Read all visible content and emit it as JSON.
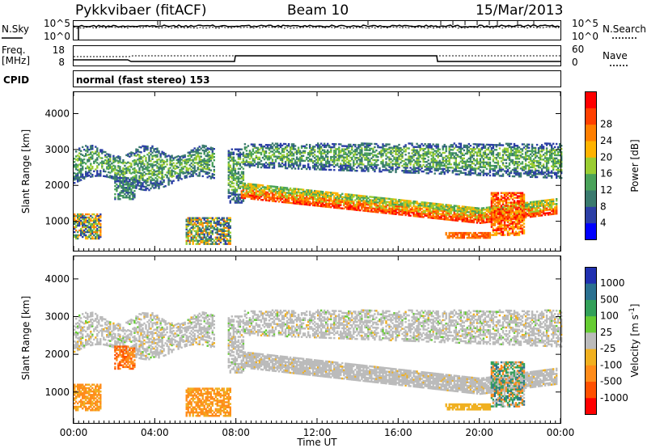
{
  "header": {
    "title": "Pykkvibaer (fitACF)",
    "beam": "Beam 10",
    "date": "15/Mar/2013"
  },
  "noise_panel": {
    "left_label": "N.Sky",
    "right_label": "N.Search",
    "left_ticks": [
      "10^5",
      "10^0"
    ],
    "right_ticks": [
      "10^5",
      "10^0"
    ]
  },
  "freq_panel": {
    "left_label_1": "Freq.",
    "left_label_2": "[MHz]",
    "right_label": "Nave",
    "left_ticks": [
      "18",
      "8"
    ],
    "right_ticks": [
      "60",
      "0"
    ]
  },
  "cpid": {
    "label": "CPID",
    "value": "normal (fast stereo) 153"
  },
  "colors": {
    "power": [
      "#0000ff",
      "#2c3fa6",
      "#3a7a6e",
      "#4aa25a",
      "#9acd32",
      "#ffb300",
      "#ff7f00",
      "#ff4000",
      "#ff0000"
    ],
    "velocity": [
      "#ff0000",
      "#ff5000",
      "#ff8c1a",
      "#f0b020",
      "#bbbbbb",
      "#66cc33",
      "#33a05a",
      "#2a7090",
      "#2030b0"
    ],
    "ground_scatter": "#bbbbbb"
  },
  "chart_data": [
    {
      "type": "heatmap",
      "title": "Power",
      "ylabel": "Slant Range [km]",
      "y_ticks": [
        "1000",
        "2000",
        "3000",
        "4000"
      ],
      "ylim": [
        180,
        4620
      ],
      "x_ticks": [
        "00:00",
        "04:00",
        "08:00",
        "12:00",
        "16:00",
        "20:00",
        "00:00"
      ],
      "xlim_hours": [
        0,
        24
      ],
      "colorbar_label": "Power [dB]",
      "colorbar_ticks": [
        "4",
        "8",
        "12",
        "16",
        "20",
        "24",
        "28"
      ],
      "colorbar_range": [
        0,
        30
      ]
    },
    {
      "type": "heatmap",
      "title": "Velocity",
      "ylabel": "Slant Range [km]",
      "y_ticks": [
        "1000",
        "2000",
        "3000",
        "4000"
      ],
      "ylim": [
        180,
        4620
      ],
      "x_ticks": [
        "00:00",
        "04:00",
        "08:00",
        "12:00",
        "16:00",
        "20:00",
        "00:00"
      ],
      "xlim_hours": [
        0,
        24
      ],
      "xlabel": "Time UT",
      "colorbar_label": "Velocity [m s^-1]",
      "colorbar_ticks": [
        "1000",
        "500",
        "100",
        "25",
        "-25",
        "-100",
        "-500",
        "-1000"
      ]
    }
  ]
}
